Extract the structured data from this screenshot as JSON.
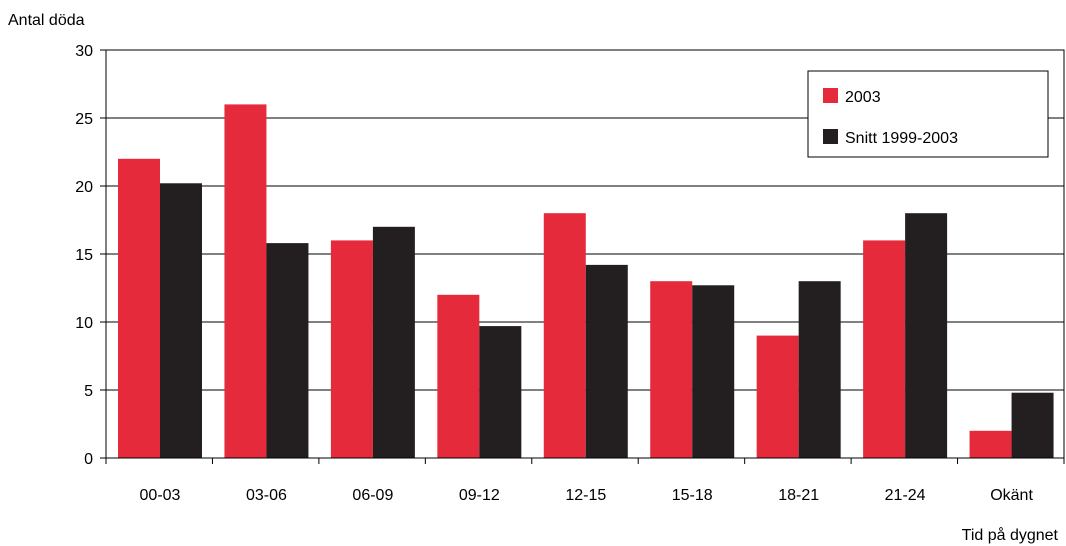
{
  "chart_data": {
    "type": "bar",
    "ylabel": "Antal döda",
    "xlabel": "Tid på dygnet",
    "ylim": [
      0,
      30
    ],
    "yticks": [
      "0",
      "5",
      "10",
      "15",
      "20",
      "25",
      "30"
    ],
    "categories": [
      "00-03",
      "03-06",
      "06-09",
      "09-12",
      "12-15",
      "15-18",
      "18-21",
      "21-24",
      "Okänt"
    ],
    "series": [
      {
        "name": "2003",
        "color": "#e52a3b",
        "values": [
          22,
          26,
          16,
          12,
          18,
          13,
          9,
          16,
          2
        ]
      },
      {
        "name": "Snitt 1999-2003",
        "color": "#231f20",
        "values": [
          20.2,
          15.8,
          17,
          9.7,
          14.2,
          12.7,
          13,
          18,
          4.8
        ]
      }
    ],
    "grid": true,
    "legend_position": "top-right"
  }
}
